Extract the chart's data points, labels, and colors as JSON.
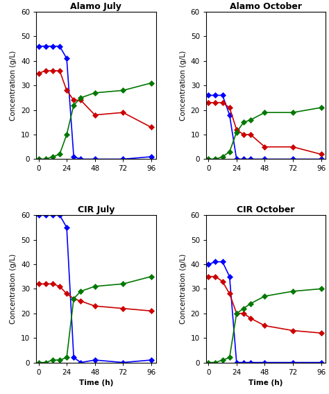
{
  "panels": [
    {
      "title": "Alamo July",
      "blue": {
        "x": [
          0,
          6,
          12,
          18,
          24,
          30,
          36,
          48,
          72,
          96
        ],
        "y": [
          46,
          46,
          46,
          46,
          41,
          1,
          0,
          0,
          0,
          1
        ]
      },
      "red": {
        "x": [
          0,
          6,
          12,
          18,
          24,
          30,
          36,
          48,
          72,
          96
        ],
        "y": [
          35,
          36,
          36,
          36,
          28,
          24,
          24,
          18,
          19,
          13
        ]
      },
      "green": {
        "x": [
          0,
          6,
          12,
          18,
          24,
          30,
          36,
          48,
          72,
          96
        ],
        "y": [
          0,
          0,
          1,
          2,
          10,
          22,
          25,
          27,
          28,
          31
        ]
      },
      "ylim": [
        0,
        60
      ]
    },
    {
      "title": "Alamo October",
      "blue": {
        "x": [
          0,
          6,
          12,
          18,
          24,
          30,
          36,
          48,
          72,
          96
        ],
        "y": [
          26,
          26,
          26,
          18,
          0,
          0,
          0,
          0,
          0,
          0
        ]
      },
      "red": {
        "x": [
          0,
          6,
          12,
          18,
          24,
          30,
          36,
          48,
          72,
          96
        ],
        "y": [
          23,
          23,
          23,
          21,
          12,
          10,
          10,
          5,
          5,
          2
        ]
      },
      "green": {
        "x": [
          0,
          6,
          12,
          18,
          24,
          30,
          36,
          48,
          72,
          96
        ],
        "y": [
          0,
          0,
          1,
          3,
          11,
          15,
          16,
          19,
          19,
          21
        ]
      },
      "ylim": [
        0,
        60
      ]
    },
    {
      "title": "CIR July",
      "blue": {
        "x": [
          0,
          6,
          12,
          18,
          24,
          30,
          36,
          48,
          72,
          96
        ],
        "y": [
          60,
          60,
          60,
          60,
          55,
          2,
          0,
          1,
          0,
          1
        ]
      },
      "red": {
        "x": [
          0,
          6,
          12,
          18,
          24,
          30,
          36,
          48,
          72,
          96
        ],
        "y": [
          32,
          32,
          32,
          31,
          28,
          26,
          25,
          23,
          22,
          21
        ]
      },
      "green": {
        "x": [
          0,
          6,
          12,
          18,
          24,
          30,
          36,
          48,
          72,
          96
        ],
        "y": [
          0,
          0,
          1,
          1,
          2,
          26,
          29,
          31,
          32,
          35
        ]
      },
      "ylim": [
        0,
        60
      ]
    },
    {
      "title": "CIR October",
      "blue": {
        "x": [
          0,
          6,
          12,
          18,
          24,
          30,
          36,
          48,
          72,
          96
        ],
        "y": [
          40,
          41,
          41,
          35,
          0,
          0,
          0,
          0,
          0,
          0
        ]
      },
      "red": {
        "x": [
          0,
          6,
          12,
          18,
          24,
          30,
          36,
          48,
          72,
          96
        ],
        "y": [
          35,
          35,
          33,
          28,
          20,
          20,
          18,
          15,
          13,
          12
        ]
      },
      "green": {
        "x": [
          0,
          6,
          12,
          18,
          24,
          30,
          36,
          48,
          72,
          96
        ],
        "y": [
          0,
          0,
          1,
          2,
          20,
          22,
          24,
          27,
          29,
          30
        ]
      },
      "ylim": [
        0,
        60
      ]
    }
  ],
  "blue_color": "#0000FF",
  "red_color": "#CC0000",
  "green_color": "#007700",
  "marker": "D",
  "markersize": 4,
  "linewidth": 1.2,
  "xlabel": "Time (h)",
  "ylabel": "Concentration (g/L)",
  "xticks": [
    0,
    24,
    48,
    72,
    96
  ],
  "yticks": [
    0,
    10,
    20,
    30,
    40,
    50,
    60
  ],
  "title_fontsize": 9,
  "label_fontsize": 7.5,
  "tick_fontsize": 7.5
}
